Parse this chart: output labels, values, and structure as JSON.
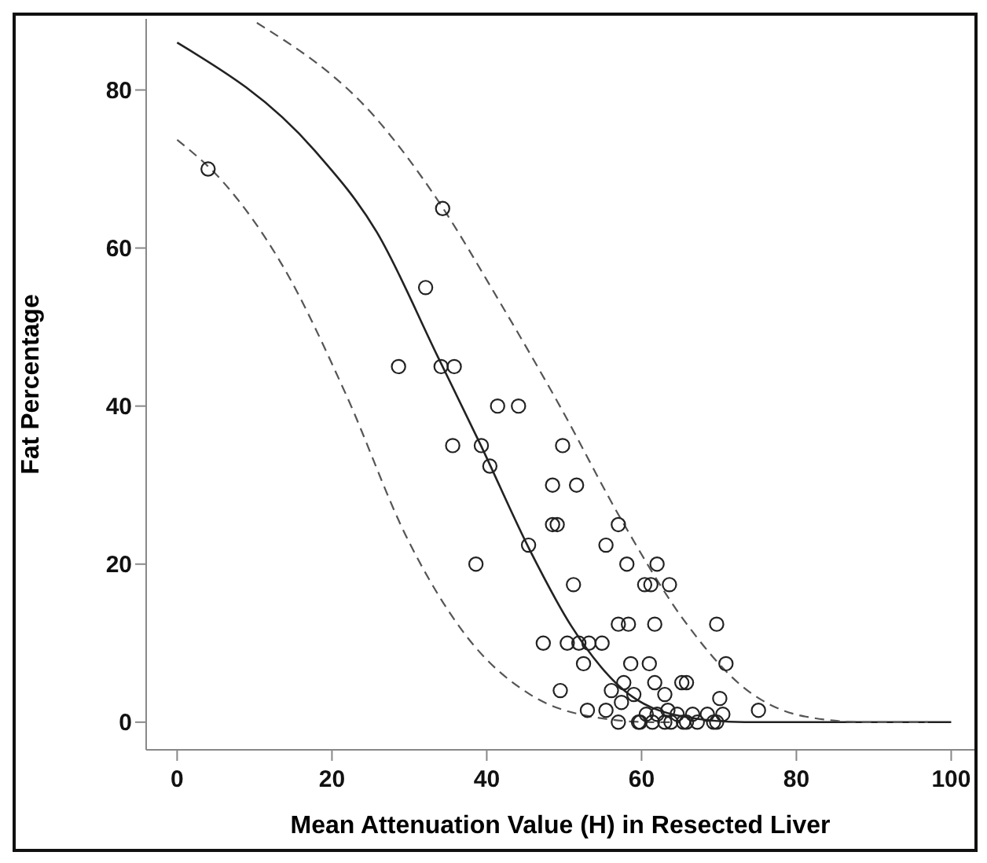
{
  "chart_data": {
    "type": "scatter",
    "xlabel": "Mean Attenuation Value (H) in Resected Liver",
    "ylabel": "Fat Percentage",
    "xlim": [
      -4,
      103
    ],
    "ylim": [
      -3.5,
      89
    ],
    "xticks": [
      0,
      20,
      40,
      60,
      80,
      100
    ],
    "yticks": [
      0,
      20,
      40,
      60,
      80
    ],
    "grid": false,
    "legend": false,
    "series": [
      {
        "marker": "circle",
        "color": "#222222",
        "x": [
          4,
          34.3,
          32.1,
          28.6,
          34.1,
          35.8,
          41.4,
          44.1,
          35.6,
          39.3,
          40.4,
          49.8,
          48.5,
          51.6,
          48.5,
          49.1,
          57,
          45.4,
          55.4,
          38.6,
          58.1,
          62,
          51.2,
          60.4,
          61.2,
          63.6,
          57,
          58.3,
          61.7,
          69.7,
          47.3,
          50.4,
          51.9,
          53.2,
          54.9,
          52.5,
          58.6,
          61,
          70.9,
          49.5,
          57.7,
          61.7,
          65.2,
          65.8,
          56.1,
          63,
          59,
          57.4,
          70.1,
          53,
          55.4,
          75.1,
          57,
          59.6,
          59.8,
          60.6,
          61.4,
          62,
          63,
          63.4,
          63.8,
          64.6,
          65.4,
          65.8,
          66.6,
          67.2,
          68.5,
          69.3,
          69.7,
          70.5
        ],
        "values": [
          70,
          65,
          55,
          45,
          45,
          45,
          40,
          40,
          35,
          35,
          32.4,
          35,
          30,
          30,
          25,
          25,
          25,
          22.4,
          22.4,
          20,
          20,
          20,
          17.4,
          17.4,
          17.4,
          17.4,
          12.4,
          12.4,
          12.4,
          12.4,
          10,
          10,
          10,
          10,
          10,
          7.4,
          7.4,
          7.4,
          7.4,
          4,
          5,
          5,
          5,
          5,
          4,
          3.5,
          3.5,
          2.5,
          3,
          1.5,
          1.5,
          1.5,
          0,
          0,
          0,
          1,
          0,
          1,
          0,
          1.5,
          0,
          1,
          0,
          0,
          1,
          0,
          1,
          0,
          0,
          1
        ]
      },
      {
        "type": "line",
        "marker": "none",
        "line_style": "solid",
        "color": "#222222",
        "x": [
          0,
          17.8,
          25.8,
          33.7,
          39.2,
          45.6,
          50.9,
          57.4,
          65.4,
          73.3,
          100
        ],
        "values": [
          86,
          72.3,
          62,
          46.2,
          35.1,
          21.7,
          12.2,
          4.3,
          0.7,
          0,
          0
        ]
      },
      {
        "type": "line",
        "marker": "none",
        "line_style": "dashed",
        "color": "#555555",
        "x": [
          10.3,
          25.8,
          33.7,
          41.6,
          49.5,
          57.4,
          65.4,
          73.3,
          81.2,
          89,
          97
        ],
        "values": [
          88.5,
          76.3,
          66,
          53.3,
          39.9,
          25.6,
          13,
          4.3,
          0.7,
          0,
          0
        ]
      },
      {
        "type": "line",
        "marker": "none",
        "line_style": "dashed",
        "color": "#555555",
        "x": [
          0,
          5.9,
          13.9,
          21.8,
          29.7,
          37.6,
          45.6,
          53.5,
          61.4,
          65
        ],
        "values": [
          73.7,
          68.4,
          57.3,
          41.5,
          23.3,
          10.6,
          3.5,
          0.7,
          0,
          0
        ]
      }
    ]
  }
}
